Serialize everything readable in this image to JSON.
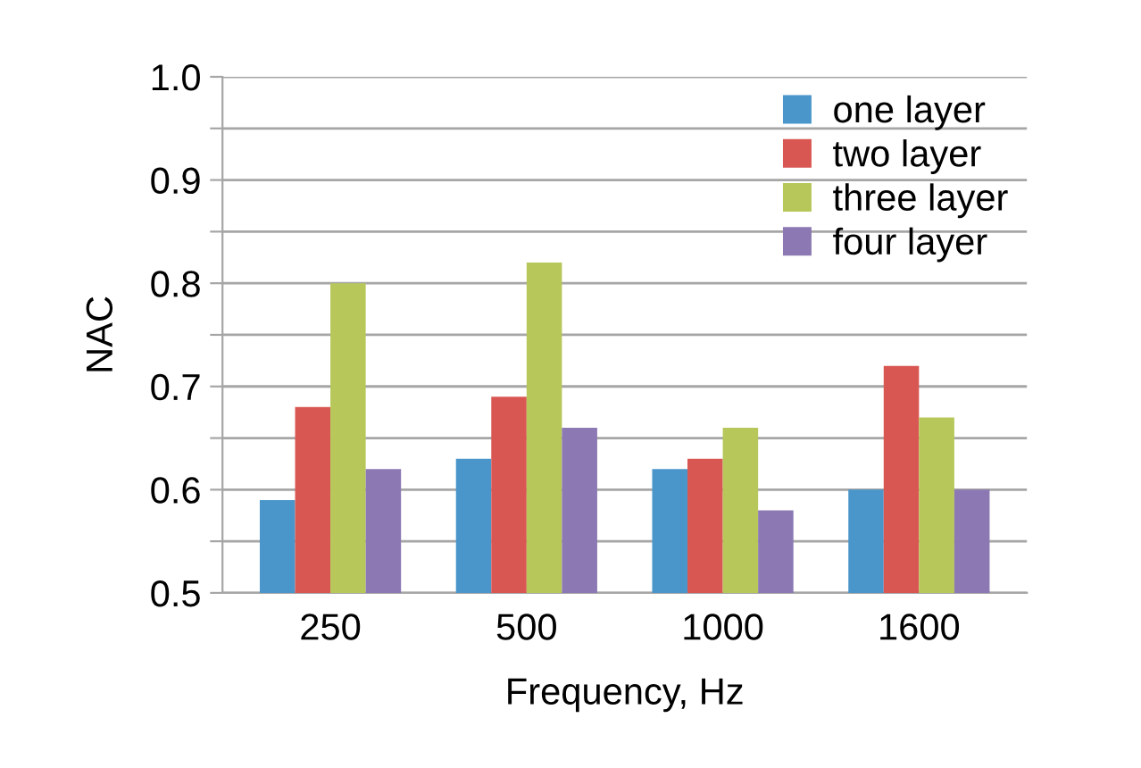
{
  "chart_data": {
    "type": "bar",
    "xlabel": "Frequency, Hz",
    "ylabel": "NAC",
    "categories": [
      "250",
      "500",
      "1000",
      "1600"
    ],
    "series": [
      {
        "name": "one layer",
        "color": "#4a96cb",
        "values": [
          0.59,
          0.63,
          0.62,
          0.6
        ]
      },
      {
        "name": "two layer",
        "color": "#d95752",
        "values": [
          0.68,
          0.69,
          0.63,
          0.72
        ]
      },
      {
        "name": "three layer",
        "color": "#b7c75a",
        "values": [
          0.8,
          0.82,
          0.66,
          0.67
        ]
      },
      {
        "name": "four layer",
        "color": "#8c79b3",
        "values": [
          0.62,
          0.66,
          0.58,
          0.6
        ]
      }
    ],
    "ylim": [
      0.5,
      1.0
    ],
    "yticks": [
      {
        "value": 0.5,
        "label": "0.5"
      },
      {
        "value": 0.55,
        "label": null
      },
      {
        "value": 0.6,
        "label": "0.6"
      },
      {
        "value": 0.65,
        "label": null
      },
      {
        "value": 0.7,
        "label": "0.7"
      },
      {
        "value": 0.75,
        "label": null
      },
      {
        "value": 0.8,
        "label": "0.8"
      },
      {
        "value": 0.85,
        "label": null
      },
      {
        "value": 0.9,
        "label": "0.9"
      },
      {
        "value": 0.95,
        "label": null
      },
      {
        "value": 1.0,
        "label": "1.0"
      }
    ],
    "grid": "y",
    "legend": "top right"
  }
}
